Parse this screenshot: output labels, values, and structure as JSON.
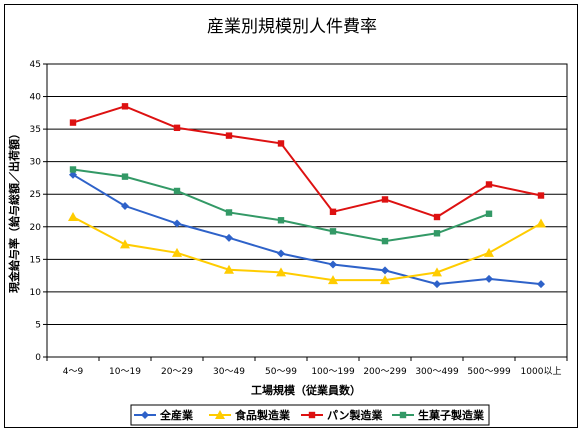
{
  "chart_data": {
    "type": "line",
    "title": "産業別規模別人件費率",
    "xlabel": "工場規模（従業員数）",
    "ylabel": "現金給与率（給与総額／出荷額）",
    "ylim": [
      0,
      45
    ],
    "yticks": [
      0,
      5,
      10,
      15,
      20,
      25,
      30,
      35,
      40,
      45
    ],
    "grid": true,
    "legend_position": "bottom",
    "categories": [
      "4～9",
      "10～19",
      "20～29",
      "30～49",
      "50～99",
      "100～199",
      "200～299",
      "300～499",
      "500～999",
      "1000以上"
    ],
    "series": [
      {
        "name": "全産業",
        "color": "#2e62c9",
        "marker": "diamond",
        "values": [
          28.0,
          23.2,
          20.5,
          18.3,
          15.9,
          14.2,
          13.3,
          11.2,
          12.0,
          11.2
        ]
      },
      {
        "name": "食品製造業",
        "color": "#ffcc00",
        "marker": "triangle",
        "values": [
          21.5,
          17.3,
          16.0,
          13.4,
          13.0,
          11.8,
          11.8,
          13.0,
          16.0,
          20.5
        ]
      },
      {
        "name": "パン製造業",
        "color": "#dd1111",
        "marker": "square",
        "values": [
          36.0,
          38.5,
          35.2,
          34.0,
          32.8,
          22.3,
          24.2,
          21.5,
          26.5,
          24.8
        ]
      },
      {
        "name": "生菓子製造業",
        "color": "#339966",
        "marker": "square",
        "values": [
          28.8,
          27.7,
          25.5,
          22.2,
          21.0,
          19.3,
          17.8,
          19.0,
          22.0,
          null
        ]
      }
    ]
  }
}
